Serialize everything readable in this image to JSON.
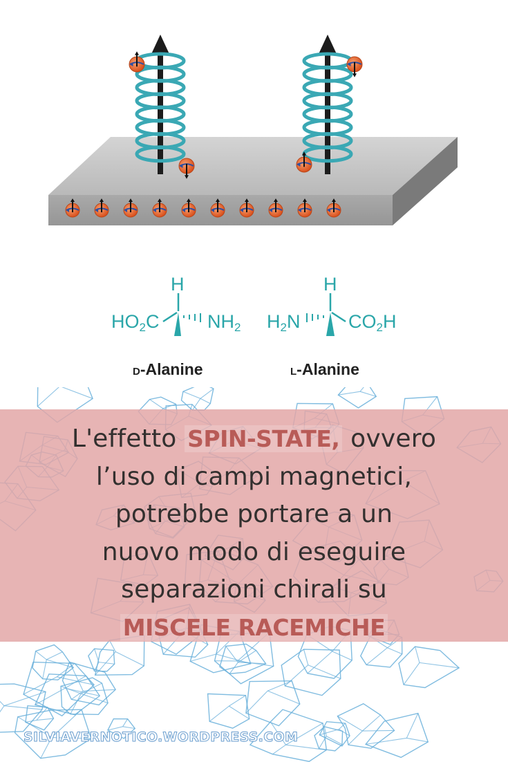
{
  "molecules": {
    "d": {
      "h": "H",
      "left_group": "HO2C",
      "right_group": "NH2",
      "prefix": "D",
      "name": "-Alanine"
    },
    "l": {
      "h": "H",
      "left_group": "H2N",
      "right_group": "CO2H",
      "prefix": "L",
      "name": "-Alanine"
    }
  },
  "caption": {
    "line1_pre": "L'effetto",
    "highlight1": "SPIN-STATE,",
    "line1_post": "ovvero",
    "line2": "l’uso di campi magnetici,",
    "line3": "potrebbe portare a un",
    "line4": "nuovo modo di eseguire",
    "line5": "separazioni chirali su",
    "highlight2": "MISCELE RACEMICHE"
  },
  "watermark": "SILVIAVERNOTICO.WORDPRESS.COM",
  "colors": {
    "helix": "#3aa8b4",
    "chem_text": "#2aa6a9",
    "band": "#e2a6a6",
    "highlight": "#b85b57",
    "pattern": "#6ab0db",
    "electron": "#e8632b"
  }
}
